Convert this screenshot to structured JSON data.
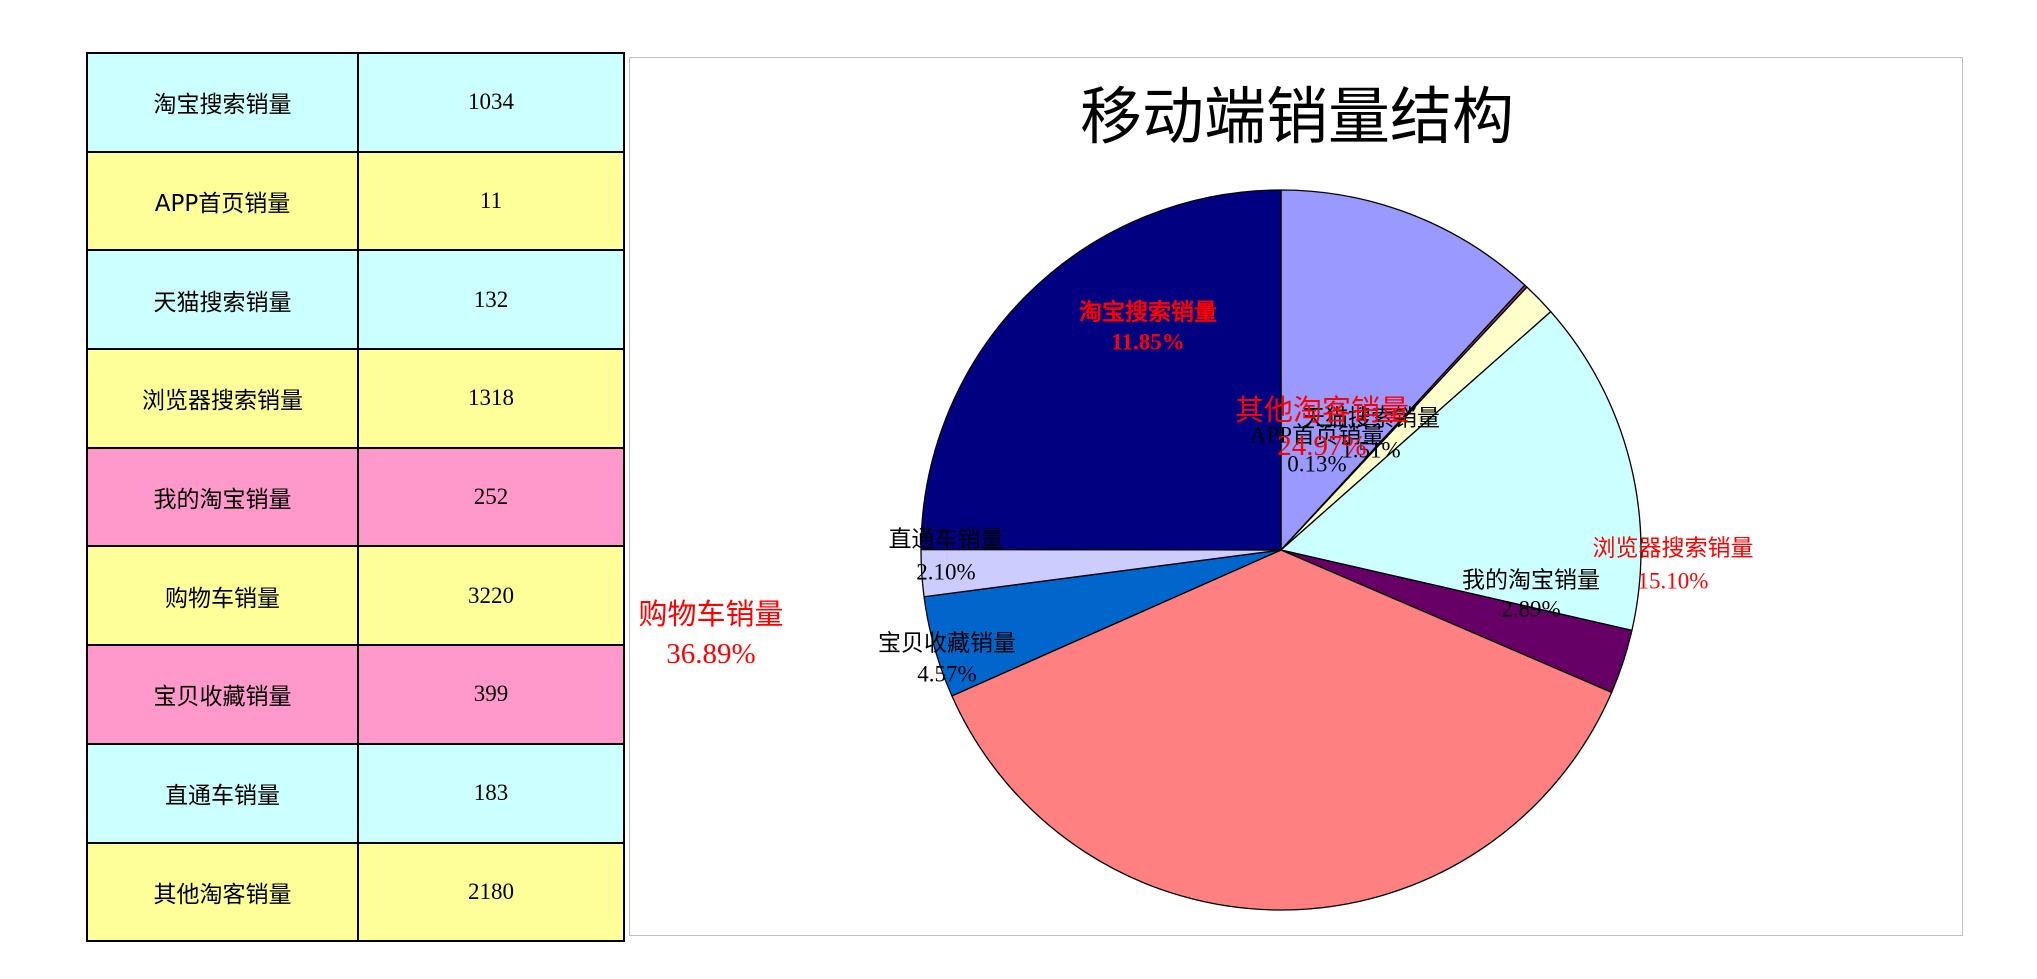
{
  "table": {
    "rows": [
      {
        "label": "淘宝搜索销量",
        "value": "1034",
        "color": "#CCFFFF"
      },
      {
        "label": "APP首页销量",
        "value": "11",
        "color": "#FFFF99"
      },
      {
        "label": "天猫搜索销量",
        "value": "132",
        "color": "#CCFFFF"
      },
      {
        "label": "浏览器搜索销量",
        "value": "1318",
        "color": "#FFFF99"
      },
      {
        "label": "我的淘宝销量",
        "value": "252",
        "color": "#FF99CC"
      },
      {
        "label": "购物车销量",
        "value": "3220",
        "color": "#FFFF99"
      },
      {
        "label": "宝贝收藏销量",
        "value": "399",
        "color": "#FF99CC"
      },
      {
        "label": "直通车销量",
        "value": "183",
        "color": "#CCFFFF"
      },
      {
        "label": "其他淘客销量",
        "value": "2180",
        "color": "#FFFF99"
      }
    ]
  },
  "chart_data": {
    "type": "pie",
    "title": "移动端销量结构",
    "categories": [
      "淘宝搜索销量",
      "APP首页销量",
      "天猫搜索销量",
      "浏览器搜索销量",
      "我的淘宝销量",
      "购物车销量",
      "宝贝收藏销量",
      "直通车销量",
      "其他淘客销量"
    ],
    "values": [
      1034,
      11,
      132,
      1318,
      252,
      3220,
      399,
      183,
      2180
    ],
    "percent_labels": [
      "11.85%",
      "0.13%",
      "1.51%",
      "15.10%",
      "2.89%",
      "36.89%",
      "4.57%",
      "2.10%",
      "24.97%"
    ],
    "colors": [
      "#9999FF",
      "#993366",
      "#FFFFCC",
      "#CCFFFF",
      "#660066",
      "#FF8080",
      "#0066CC",
      "#CCCCFF",
      "#000080"
    ],
    "label_colors": [
      "#FF0000",
      "#000000",
      "#000000",
      "#FF0000",
      "#000000",
      "#FF0000",
      "#000000",
      "#000000",
      "#FF0000"
    ]
  }
}
